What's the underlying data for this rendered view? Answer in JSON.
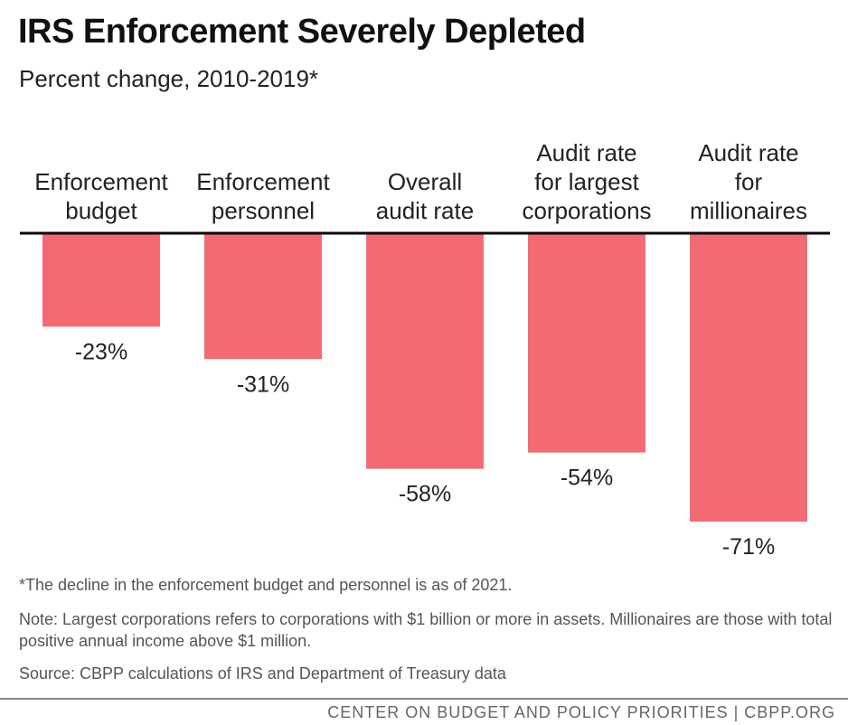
{
  "title": "IRS Enforcement Severely Depleted",
  "subtitle": "Percent change, 2010-2019*",
  "colors": {
    "bar": "#f26b72",
    "baseline": "#000000"
  },
  "chart_data": {
    "type": "bar",
    "categories": [
      [
        "Enforcement",
        "budget"
      ],
      [
        "Enforcement",
        "personnel"
      ],
      [
        "Overall",
        "audit rate"
      ],
      [
        "Audit rate",
        "for largest",
        "corporations"
      ],
      [
        "Audit rate",
        "for",
        "millionaires"
      ]
    ],
    "values": [
      -23,
      -31,
      -58,
      -54,
      -71
    ],
    "value_labels": [
      "-23%",
      "-31%",
      "-58%",
      "-54%",
      "-71%"
    ],
    "ylim": [
      -71,
      0
    ],
    "grid": false,
    "legend": "none"
  },
  "footnotes": {
    "asterisk": "*The decline in the enforcement budget and personnel is as of 2021.",
    "note": "Note: Largest corporations refers to corporations with $1 billion or more in assets. Millionaires are those with total positive annual income above $1 million.",
    "source": "Source: CBPP calculations of IRS and Department of Treasury data"
  },
  "brand": "CENTER ON BUDGET AND POLICY PRIORITIES | CBPP.ORG"
}
